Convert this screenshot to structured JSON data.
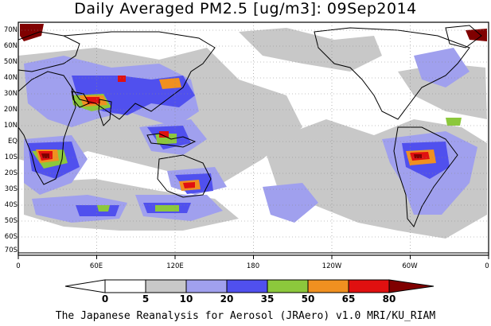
{
  "title": "Daily Averaged PM2.5 [ug/m3]: 09Sep2014",
  "footer": "The Japanese Reanalysis for Aerosol (JRAero) v1.0 MRI/KU_RIAM",
  "map": {
    "lat_labels": [
      "70N",
      "60N",
      "50N",
      "40N",
      "30N",
      "20N",
      "10N",
      "EQ",
      "10S",
      "20S",
      "30S",
      "40S",
      "50S",
      "60S",
      "70S"
    ],
    "lon_labels": [
      "0",
      "60E",
      "120E",
      "180",
      "120W",
      "60W",
      "0"
    ]
  },
  "colorbar": {
    "labels": [
      "0",
      "5",
      "10",
      "20",
      "35",
      "50",
      "65",
      "80"
    ],
    "colors": [
      "#ffffff",
      "#c8c8c8",
      "#a0a0ee",
      "#5050ee",
      "#8cc83c",
      "#f09020",
      "#e01010",
      "#800000"
    ]
  }
}
